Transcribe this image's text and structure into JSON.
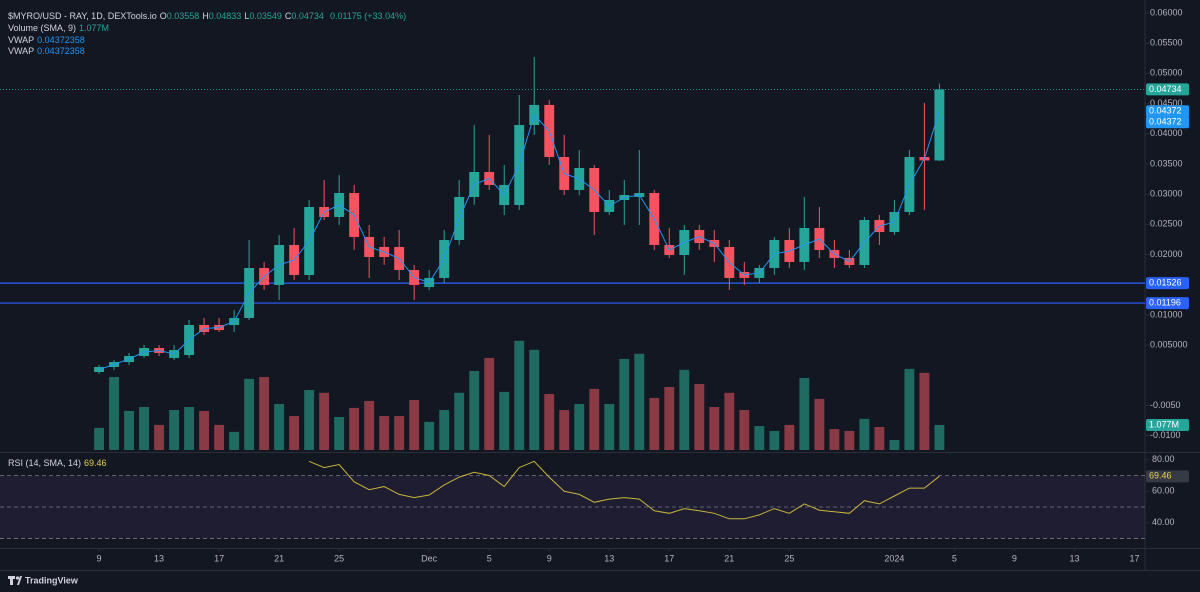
{
  "header": {
    "symbol": "$MYRO/USD - RAY, 1D, DEXTools.io",
    "ohlc": [
      {
        "key": "O",
        "value": "0.03558"
      },
      {
        "key": "H",
        "value": "0.04833"
      },
      {
        "key": "L",
        "value": "0.03549"
      },
      {
        "key": "C",
        "value": "0.04734"
      }
    ],
    "change": "0.01175 (+33.04%)",
    "vwap_title": "VWAP",
    "vwap_value": "0.04372358"
  },
  "chart_data": {
    "type": "candlestick",
    "xlim": [
      -6.6,
      69.7
    ],
    "xticks": [
      {
        "value": 0,
        "label": "9"
      },
      {
        "value": 4,
        "label": "13"
      },
      {
        "value": 8,
        "label": "17"
      },
      {
        "value": 12,
        "label": "21"
      },
      {
        "value": 16,
        "label": "25"
      },
      {
        "value": 22,
        "label": "Dec"
      },
      {
        "value": 26,
        "label": "5"
      },
      {
        "value": 30,
        "label": "9"
      },
      {
        "value": 34,
        "label": "13"
      },
      {
        "value": 38,
        "label": "17"
      },
      {
        "value": 42,
        "label": "21"
      },
      {
        "value": 46,
        "label": "25"
      },
      {
        "value": 53,
        "label": "2024"
      },
      {
        "value": 57,
        "label": "5"
      },
      {
        "value": 61,
        "label": "9"
      },
      {
        "value": 65,
        "label": "13"
      },
      {
        "value": 69,
        "label": "17"
      }
    ],
    "ylim": [
      -0.0127,
      0.06215
    ],
    "yticks": [
      {
        "value": 0.06,
        "label": "0.06000"
      },
      {
        "value": 0.055,
        "label": "0.05500"
      },
      {
        "value": 0.05,
        "label": "0.05000"
      },
      {
        "value": 0.045,
        "label": "0.04500"
      },
      {
        "value": 0.04,
        "label": "0.04000"
      },
      {
        "value": 0.035,
        "label": "0.03500"
      },
      {
        "value": 0.03,
        "label": "0.03000"
      },
      {
        "value": 0.025,
        "label": "0.02500"
      },
      {
        "value": 0.02,
        "label": "0.02000"
      },
      {
        "value": 0.015,
        "label": "0.01500"
      },
      {
        "value": 0.01,
        "label": "0.01000"
      },
      {
        "value": 0.005,
        "label": "0.005000"
      },
      {
        "value": -0.005,
        "label": "-0.0050"
      },
      {
        "value": -0.01,
        "label": "-0.0100"
      }
    ],
    "grid": false,
    "up_color": "#26a69a",
    "down_color": "#f7525f",
    "open": [
      0.00055,
      0.00138,
      0.0022,
      0.0032,
      0.00452,
      0.00287,
      0.00336,
      0.00833,
      0.00833,
      0.00833,
      0.00949,
      0.01777,
      0.01496,
      0.02158,
      0.01661,
      0.02787,
      0.02622,
      0.03019,
      0.02291,
      0.02125,
      0.02125,
      0.01744,
      0.01462,
      0.01612,
      0.02241,
      0.02953,
      0.03367,
      0.0282,
      0.0282,
      0.04145,
      0.04477,
      0.03615,
      0.03069,
      0.03433,
      0.02705,
      0.02903,
      0.02953,
      0.03019,
      0.02158,
      0.01992,
      0.02406,
      0.02241,
      0.02125,
      0.01711,
      0.01612,
      0.01777,
      0.02241,
      0.01877,
      0.0244,
      0.02075,
      0.01943,
      0.01827,
      0.02572,
      0.02373,
      0.02705,
      0.03615,
      0.03558
    ],
    "high": [
      0.00171,
      0.00254,
      0.0037,
      0.00502,
      0.00502,
      0.00502,
      0.00916,
      0.00949,
      0.00949,
      0.01082,
      0.02241,
      0.01877,
      0.02324,
      0.0244,
      0.02903,
      0.03234,
      0.03317,
      0.03152,
      0.02489,
      0.02291,
      0.02406,
      0.01827,
      0.01744,
      0.02406,
      0.03234,
      0.04145,
      0.0398,
      0.03483,
      0.04642,
      0.05272,
      0.04559,
      0.0398,
      0.03731,
      0.03483,
      0.03069,
      0.03234,
      0.03731,
      0.03069,
      0.0244,
      0.02489,
      0.02489,
      0.02406,
      0.02241,
      0.01877,
      0.01827,
      0.02291,
      0.0244,
      0.02953,
      0.02787,
      0.02241,
      0.02075,
      0.02622,
      0.02655,
      0.02903,
      0.03731,
      0.0451,
      0.04833
    ],
    "low": [
      0.00022,
      0.00088,
      0.00171,
      0.00287,
      0.0032,
      0.00254,
      0.00287,
      0.00668,
      0.00717,
      0.00717,
      0.00916,
      0.01413,
      0.01247,
      0.01579,
      0.01579,
      0.02572,
      0.02489,
      0.02075,
      0.01612,
      0.01827,
      0.01579,
      0.01247,
      0.01413,
      0.01529,
      0.02158,
      0.0282,
      0.03069,
      0.02655,
      0.02738,
      0.0398,
      0.03483,
      0.02986,
      0.02986,
      0.02324,
      0.02655,
      0.02489,
      0.02489,
      0.02075,
      0.01943,
      0.01661,
      0.02075,
      0.01877,
      0.01413,
      0.01496,
      0.01529,
      0.01661,
      0.01777,
      0.01744,
      0.01943,
      0.01777,
      0.01777,
      0.01777,
      0.02158,
      0.02324,
      0.02655,
      0.02738,
      0.03549
    ],
    "close": [
      0.00138,
      0.0022,
      0.0032,
      0.00452,
      0.0037,
      0.00419,
      0.00833,
      0.00717,
      0.0075,
      0.00949,
      0.01777,
      0.01496,
      0.02158,
      0.01661,
      0.02787,
      0.02622,
      0.03019,
      0.02291,
      0.01959,
      0.01959,
      0.01744,
      0.01496,
      0.01612,
      0.02241,
      0.02953,
      0.03367,
      0.03152,
      0.03152,
      0.04145,
      0.04477,
      0.03615,
      0.03069,
      0.03433,
      0.02705,
      0.02903,
      0.02986,
      0.03019,
      0.02158,
      0.01992,
      0.02406,
      0.02191,
      0.02125,
      0.01612,
      0.01612,
      0.01777,
      0.02241,
      0.01877,
      0.0244,
      0.02075,
      0.01943,
      0.01827,
      0.02572,
      0.02373,
      0.02705,
      0.03615,
      0.03558,
      0.04734
    ],
    "last_label": "0.04734",
    "vwap": {
      "name": "VWAP",
      "color": "#2196f3",
      "values": [
        0.00097,
        0.00179,
        0.0027,
        0.00386,
        0.00411,
        0.00353,
        0.00585,
        0.00775,
        0.00792,
        0.00891,
        0.01363,
        0.01637,
        0.01827,
        0.0191,
        0.02224,
        0.02705,
        0.02821,
        0.02655,
        0.02125,
        0.02042,
        0.01935,
        0.0162,
        0.01537,
        0.01927,
        0.02597,
        0.0316,
        0.0326,
        0.02986,
        0.03483,
        0.04311,
        0.04046,
        0.03342,
        0.03251,
        0.03069,
        0.02804,
        0.02945,
        0.02986,
        0.02589,
        0.02075,
        0.02199,
        0.02299,
        0.02183,
        0.01869,
        0.01662,
        0.01695,
        0.02009,
        0.02059,
        0.02159,
        0.02258,
        0.02009,
        0.01885,
        0.022,
        0.02473,
        0.02539,
        0.0316,
        0.03587,
        0.04372
      ],
      "last_label": "0.04372"
    },
    "volume": {
      "name": "Volume (SMA, 9)",
      "ylim": [
        0,
        18.8
      ],
      "up_color": "#1f6b61",
      "down_color": "#8a3a45",
      "values": [
        0.95,
        3.14,
        1.68,
        1.85,
        1.08,
        1.72,
        1.85,
        1.68,
        1.08,
        0.78,
        3.06,
        3.14,
        1.98,
        1.46,
        2.58,
        2.46,
        1.42,
        1.81,
        2.11,
        1.46,
        1.46,
        2.15,
        1.21,
        1.72,
        2.46,
        3.4,
        3.96,
        2.5,
        4.7,
        4.31,
        2.41,
        1.72,
        1.98,
        2.63,
        1.98,
        3.92,
        4.14,
        2.24,
        2.71,
        3.45,
        2.84,
        1.85,
        2.46,
        1.72,
        1.03,
        0.82,
        1.08,
        3.1,
        2.2,
        0.9,
        0.82,
        1.34,
        0.99,
        0.43,
        3.49,
        3.32,
        1.077
      ],
      "last_label": "1.077M"
    },
    "hlines": [
      {
        "value": 0.01526,
        "label": "0.01526",
        "color": "#2962ff"
      },
      {
        "value": 0.01196,
        "label": "0.01196",
        "color": "#2962ff"
      }
    ],
    "rsi": {
      "name": "RSI (14, SMA, 14)",
      "color": "#c9b53a",
      "ylim": [
        24,
        83
      ],
      "yticks": [
        {
          "value": 80,
          "label": "80.00"
        },
        {
          "value": 60,
          "label": "60.00"
        },
        {
          "value": 40,
          "label": "40.00"
        }
      ],
      "levels": [
        70,
        50,
        30
      ],
      "last_label": "69.46",
      "values": [
        null,
        null,
        null,
        null,
        null,
        null,
        null,
        null,
        null,
        null,
        null,
        null,
        null,
        null,
        79,
        75,
        77,
        66,
        61,
        63,
        58,
        56,
        57.6,
        64,
        69,
        72,
        70,
        63,
        75,
        79,
        69,
        60,
        58,
        53,
        55,
        56,
        55,
        47.6,
        46,
        49,
        47.6,
        46,
        42.5,
        42.5,
        45,
        49,
        46,
        52,
        48,
        47,
        46,
        54,
        52,
        57,
        62,
        62,
        69.46
      ]
    }
  },
  "footer": {
    "brand": "TradingView"
  }
}
